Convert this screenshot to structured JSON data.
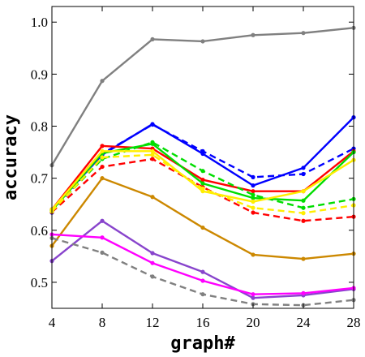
{
  "chart_data": {
    "type": "line",
    "xlabel": "graph#",
    "ylabel": "accuracy",
    "x": [
      4,
      8,
      12,
      16,
      20,
      24,
      28
    ],
    "xlim": [
      4,
      28
    ],
    "ylim": [
      0.45,
      1.03
    ],
    "x_ticks": [
      "4",
      "8",
      "12",
      "16",
      "20",
      "24",
      "28"
    ],
    "y_ticks": [
      "0.5",
      "0.6",
      "0.7",
      "0.8",
      "0.9",
      "1.0"
    ],
    "grid": false,
    "legend": "none",
    "series": [
      {
        "color": "#808080",
        "dash": false,
        "values": [
          0.725,
          0.887,
          0.967,
          0.963,
          0.975,
          0.979,
          0.989
        ]
      },
      {
        "color": "#0000ff",
        "dash": false,
        "values": [
          0.64,
          0.745,
          0.804,
          0.747,
          0.686,
          0.72,
          0.817
        ]
      },
      {
        "color": "#0000ff",
        "dash": true,
        "values": [
          0.634,
          0.747,
          0.803,
          0.752,
          0.702,
          0.708,
          0.757
        ]
      },
      {
        "color": "#ff0000",
        "dash": false,
        "values": [
          0.64,
          0.762,
          0.757,
          0.697,
          0.675,
          0.675,
          0.752
        ]
      },
      {
        "color": "#ff0000",
        "dash": true,
        "values": [
          0.635,
          0.722,
          0.737,
          0.683,
          0.634,
          0.618,
          0.626
        ]
      },
      {
        "color": "#00dd00",
        "dash": false,
        "values": [
          0.638,
          0.748,
          0.766,
          0.69,
          0.662,
          0.657,
          0.75
        ]
      },
      {
        "color": "#00dd00",
        "dash": true,
        "values": [
          0.637,
          0.737,
          0.769,
          0.714,
          0.668,
          0.643,
          0.66
        ]
      },
      {
        "color": "#ffee00",
        "dash": false,
        "values": [
          0.64,
          0.752,
          0.752,
          0.675,
          0.655,
          0.675,
          0.735
        ]
      },
      {
        "color": "#ffee00",
        "dash": true,
        "values": [
          0.636,
          0.74,
          0.745,
          0.68,
          0.643,
          0.633,
          0.648
        ]
      },
      {
        "color": "#cc8800",
        "dash": false,
        "values": [
          0.57,
          0.7,
          0.664,
          0.605,
          0.553,
          0.545,
          0.555
        ]
      },
      {
        "color": "#8844cc",
        "dash": false,
        "values": [
          0.541,
          0.618,
          0.556,
          0.52,
          0.47,
          0.475,
          0.487
        ]
      },
      {
        "color": "#ff00ff",
        "dash": false,
        "values": [
          0.592,
          0.586,
          0.537,
          0.503,
          0.477,
          0.479,
          0.489
        ]
      },
      {
        "color": "#808080",
        "dash": true,
        "values": [
          0.585,
          0.557,
          0.511,
          0.477,
          0.458,
          0.456,
          0.466
        ]
      }
    ]
  }
}
